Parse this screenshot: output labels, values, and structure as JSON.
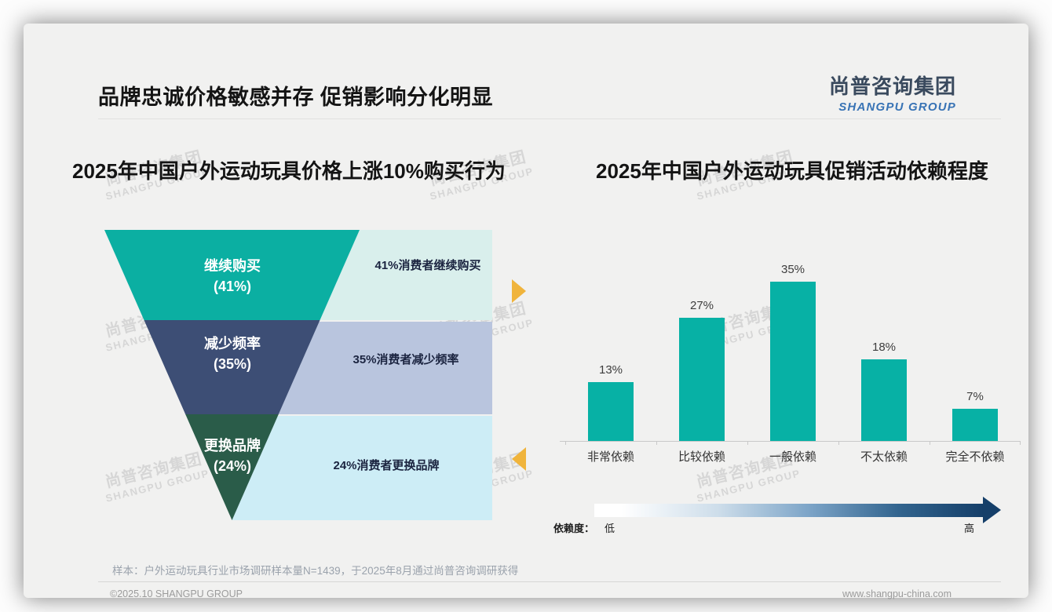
{
  "page": {
    "title": "品牌忠诚价格敏感并存 促销影响分化明显",
    "logo": {
      "cn": "尚普咨询集团",
      "en": "SHANGPU GROUP"
    },
    "watermark": {
      "cn": "尚普咨询集团",
      "en": "SHANGPU GROUP"
    },
    "sample_note": "样本：户外运动玩具行业市场调研样本量N=1439，于2025年8月通过尚普咨询调研获得",
    "footer": {
      "copyright": "©2025.10 SHANGPU GROUP",
      "website": "www.shangpu-china.com"
    }
  },
  "funnel_chart": {
    "title": "2025年中国户外运动玩具价格上涨10%购买行为",
    "segments": [
      {
        "label": "继续购买",
        "pct": "(41%)",
        "note": "41%消费者继续购买",
        "color": "#0bafa2",
        "note_bg": "#d9efec"
      },
      {
        "label": "减少频率",
        "pct": "(35%)",
        "note": "35%消费者减少频率",
        "color": "#3d4e75",
        "note_bg": "#b9c5de"
      },
      {
        "label": "更换品牌",
        "pct": "(24%)",
        "note": "24%消费者更换品牌",
        "color": "#2a5c49",
        "note_bg": "#cdedf6"
      }
    ]
  },
  "bar_chart": {
    "title": "2025年中国户外运动玩具促销活动依赖程度",
    "bar_color": "#07b1a5",
    "bars": [
      {
        "category": "非常依赖",
        "value": 13,
        "label": "13%"
      },
      {
        "category": "比较依赖",
        "value": 27,
        "label": "27%"
      },
      {
        "category": "一般依赖",
        "value": 35,
        "label": "35%"
      },
      {
        "category": "不太依赖",
        "value": 18,
        "label": "18%"
      },
      {
        "category": "完全不依赖",
        "value": 7,
        "label": "7%"
      }
    ],
    "dependency_axis": {
      "name": "依赖度：",
      "low": "低",
      "high": "高"
    }
  },
  "chart_data": [
    {
      "type": "funnel",
      "title": "2025年中国户外运动玩具价格上涨10%购买行为",
      "categories": [
        "继续购买",
        "减少频率",
        "更换品牌"
      ],
      "values": [
        41,
        35,
        24
      ],
      "annotations": [
        "41%消费者继续购买",
        "35%消费者减少频率",
        "24%消费者更换品牌"
      ],
      "colors": [
        "#0bafa2",
        "#3d4e75",
        "#2a5c49"
      ]
    },
    {
      "type": "bar",
      "title": "2025年中国户外运动玩具促销活动依赖程度",
      "categories": [
        "非常依赖",
        "比较依赖",
        "一般依赖",
        "不太依赖",
        "完全不依赖"
      ],
      "values": [
        13,
        27,
        35,
        18,
        7
      ],
      "ylim": [
        0,
        40
      ],
      "grid": false,
      "legend": "none",
      "annotation": "依赖度：低 → 高"
    }
  ]
}
